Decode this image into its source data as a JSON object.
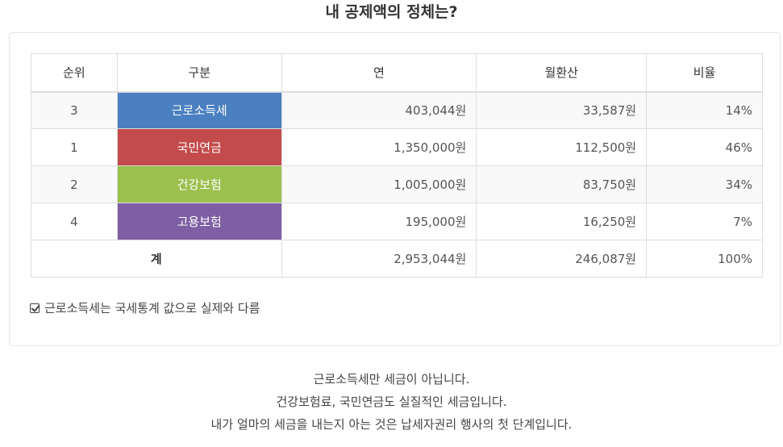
{
  "title": "내 공제액의 정체는?",
  "table": {
    "headers": [
      "순위",
      "구분",
      "연",
      "월환산",
      "비율"
    ],
    "rows": [
      {
        "rank": "3",
        "category": "근로소득세",
        "color": "#4a7fc1",
        "annual": "403,044원",
        "monthly": "33,587원",
        "ratio": "14%"
      },
      {
        "rank": "1",
        "category": "국민연금",
        "color": "#c34b4b",
        "annual": "1,350,000원",
        "monthly": "112,500원",
        "ratio": "46%"
      },
      {
        "rank": "2",
        "category": "건강보험",
        "color": "#9bc04e",
        "annual": "1,005,000원",
        "monthly": "83,750원",
        "ratio": "34%"
      },
      {
        "rank": "4",
        "category": "고용보험",
        "color": "#7e5fa3",
        "annual": "195,000원",
        "monthly": "16,250원",
        "ratio": "7%"
      }
    ],
    "total": {
      "label": "계",
      "annual": "2,953,044원",
      "monthly": "246,087원",
      "ratio": "100%"
    }
  },
  "note": "근로소득세는 국세통계 값으로 실제와 다름",
  "footer": {
    "line1": "근로소득세만 세금이 아닙니다.",
    "line2": "건강보험료, 국민연금도 실질적인 세금입니다.",
    "line3": "내가 얼마의 세금을 내는지 아는 것은 납세자권리 행사의 첫 단계입니다."
  }
}
